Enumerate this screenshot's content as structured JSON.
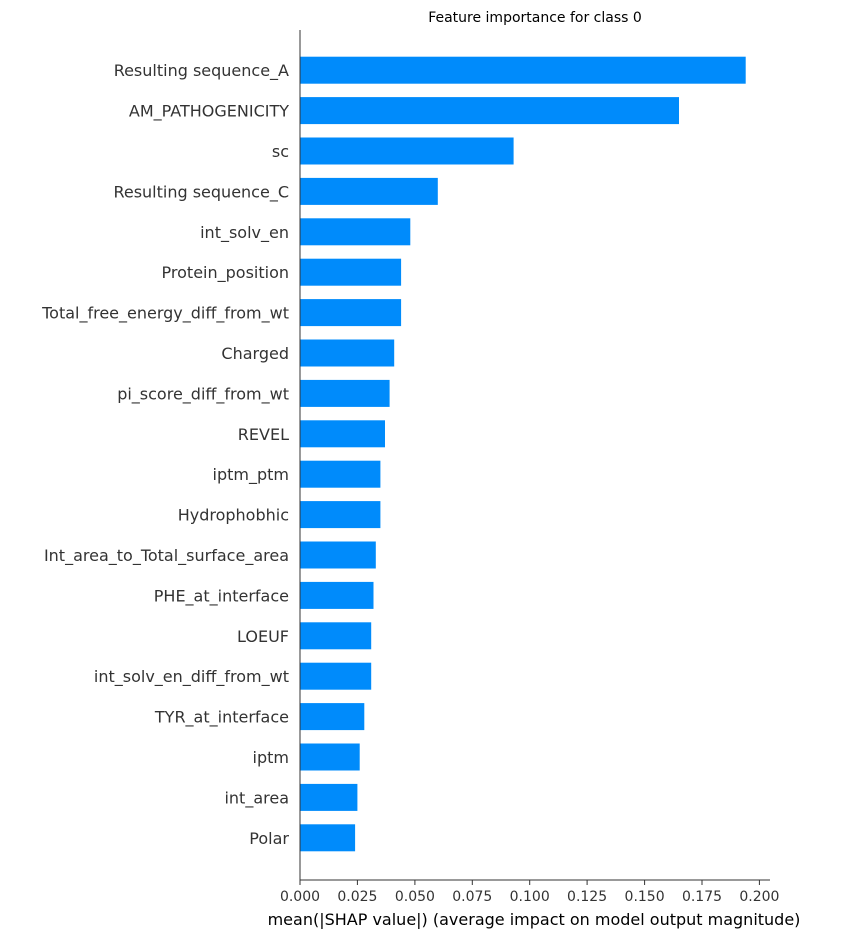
{
  "chart_data": {
    "type": "bar",
    "orientation": "horizontal",
    "title": "Feature importance for class 0",
    "xlabel": "mean(|SHAP value|) (average impact on model output magnitude)",
    "ylabel": "",
    "xlim": [
      0,
      0.2046
    ],
    "xticks": [
      "0.000",
      "0.025",
      "0.050",
      "0.075",
      "0.100",
      "0.125",
      "0.150",
      "0.175",
      "0.200"
    ],
    "grid": false,
    "bar_color": "#008bfb",
    "categories": [
      "Resulting sequence_A",
      "AM_PATHOGENICITY",
      "sc",
      "Resulting sequence_C",
      "int_solv_en",
      "Protein_position",
      "Total_free_energy_diff_from_wt",
      "Charged",
      "pi_score_diff_from_wt",
      "REVEL",
      "iptm_ptm",
      "Hydrophobhic",
      "Int_area_to_Total_surface_area",
      "PHE_at_interface",
      "LOEUF",
      "int_solv_en_diff_from_wt",
      "TYR_at_interface",
      "iptm",
      "int_area",
      "Polar"
    ],
    "values": [
      0.194,
      0.165,
      0.093,
      0.06,
      0.048,
      0.044,
      0.044,
      0.041,
      0.039,
      0.037,
      0.035,
      0.035,
      0.033,
      0.032,
      0.031,
      0.031,
      0.028,
      0.026,
      0.025,
      0.024
    ]
  }
}
